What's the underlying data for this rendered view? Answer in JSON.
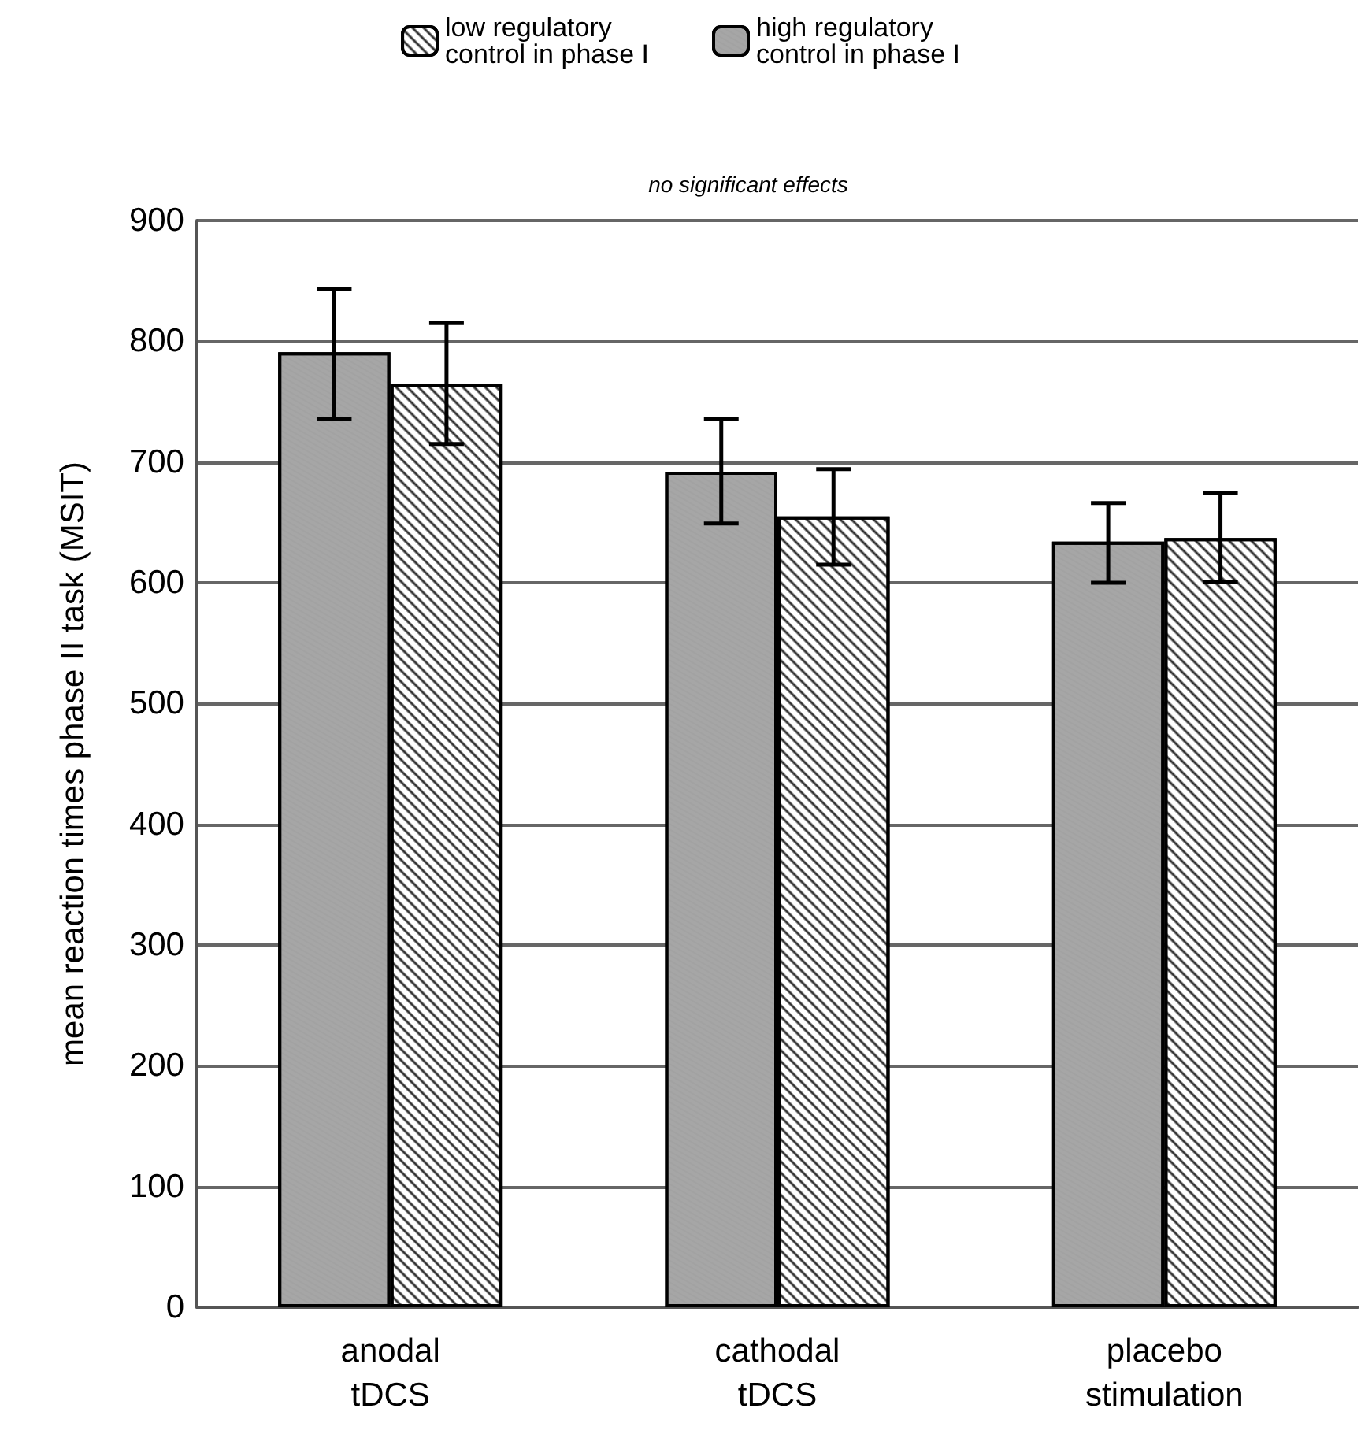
{
  "chart_data": {
    "type": "bar",
    "ylabel": "mean reaction times phase II task (MSIT)",
    "annotations": [
      "no significant effects"
    ],
    "categories": [
      "anodal\ntDCS",
      "cathodal\ntDCS",
      "placebo\nstimulation"
    ],
    "series": [
      {
        "name": "high regulatory\ncontrol in phase I",
        "color": "#a6a6a6",
        "values": [
          791,
          692,
          634
        ],
        "errors": [
          [
            736,
            843
          ],
          [
            649,
            736
          ],
          [
            600,
            666
          ]
        ]
      },
      {
        "name": "low regulatory\ncontrol in phase I",
        "color": "#ffffff",
        "values": [
          765,
          655,
          637
        ],
        "errors": [
          [
            715,
            815
          ],
          [
            615,
            694
          ],
          [
            601,
            674
          ]
        ]
      }
    ],
    "ylim": [
      0,
      900
    ],
    "yticks": [
      0,
      100,
      200,
      300,
      400,
      500,
      600,
      700,
      800,
      900
    ],
    "grid": "y",
    "legend": "top"
  }
}
